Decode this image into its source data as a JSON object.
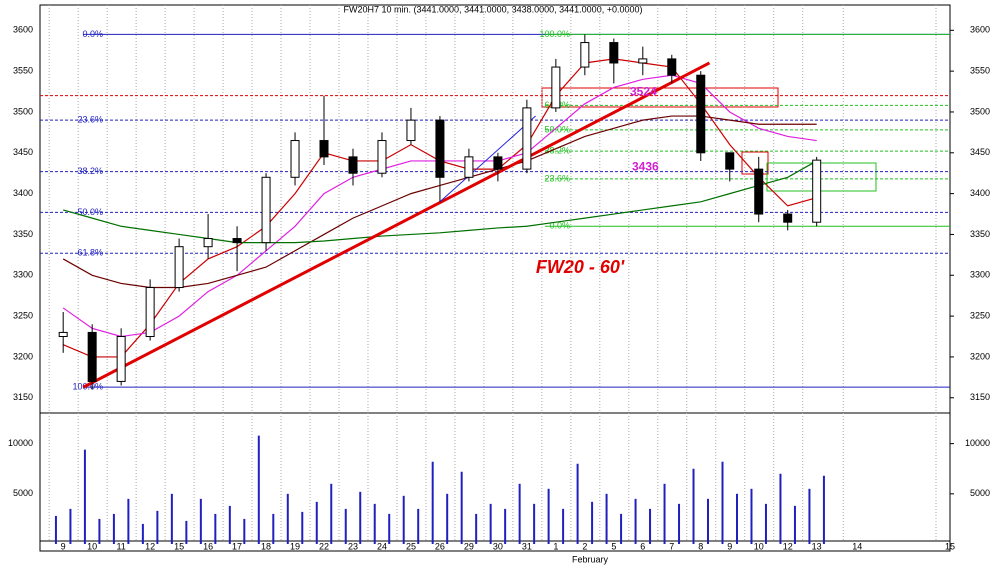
{
  "chart_data": {
    "type": "candlestick",
    "title": "FW20H7 10 min. (3441.0000, 3441.0000, 3438.0000, 3441.0000, +0.0000)",
    "annotation": "FW20 - 60'",
    "price_notes": [
      {
        "label": "3524",
        "value": 3524
      },
      {
        "label": "3436",
        "value": 3436
      }
    ],
    "month_label": "February",
    "xlim": [
      -0.8,
      30.6
    ],
    "xticks": [
      {
        "value": 0,
        "label": "9"
      },
      {
        "value": 1,
        "label": "10"
      },
      {
        "value": 2,
        "label": "11"
      },
      {
        "value": 3,
        "label": "12"
      },
      {
        "value": 4,
        "label": "15"
      },
      {
        "value": 5,
        "label": "16"
      },
      {
        "value": 6,
        "label": "17"
      },
      {
        "value": 7,
        "label": "18"
      },
      {
        "value": 8,
        "label": "19"
      },
      {
        "value": 9,
        "label": "22"
      },
      {
        "value": 10,
        "label": "23"
      },
      {
        "value": 11,
        "label": "24"
      },
      {
        "value": 12,
        "label": "25"
      },
      {
        "value": 13,
        "label": "26"
      },
      {
        "value": 14,
        "label": "29"
      },
      {
        "value": 15,
        "label": "30"
      },
      {
        "value": 16,
        "label": "31"
      },
      {
        "value": 17,
        "label": "1"
      },
      {
        "value": 18,
        "label": "2"
      },
      {
        "value": 19,
        "label": "5"
      },
      {
        "value": 20,
        "label": "6"
      },
      {
        "value": 21,
        "label": "7"
      },
      {
        "value": 22,
        "label": "8"
      },
      {
        "value": 23,
        "label": "9"
      },
      {
        "value": 24,
        "label": "10"
      },
      {
        "value": 25,
        "label": "12"
      },
      {
        "value": 26,
        "label": "13"
      },
      {
        "value": 27.4,
        "label": "14"
      },
      {
        "value": 30.6,
        "label": "15"
      }
    ],
    "ylim": [
      3135,
      3631
    ],
    "yticks": [
      3150,
      3200,
      3250,
      3300,
      3350,
      3400,
      3450,
      3500,
      3550,
      3600
    ],
    "x": [
      0,
      1,
      2,
      3,
      4,
      5,
      6,
      7,
      8,
      9,
      10,
      11,
      12,
      13,
      14,
      15,
      16,
      17,
      18,
      19,
      20,
      21,
      22,
      23,
      24,
      25,
      26
    ],
    "open": [
      3225,
      3230,
      3170,
      3225,
      3285,
      3335,
      3345,
      3340,
      3420,
      3465,
      3445,
      3425,
      3465,
      3490,
      3420,
      3445,
      3430,
      3505,
      3555,
      3585,
      3560,
      3565,
      3545,
      3450,
      3430,
      3375,
      3365
    ],
    "high": [
      3255,
      3240,
      3235,
      3295,
      3345,
      3375,
      3360,
      3425,
      3475,
      3520,
      3455,
      3475,
      3505,
      3495,
      3455,
      3450,
      3515,
      3565,
      3595,
      3590,
      3580,
      3570,
      3550,
      3450,
      3445,
      3380,
      3445
    ],
    "low": [
      3205,
      3160,
      3165,
      3220,
      3280,
      3320,
      3305,
      3330,
      3410,
      3435,
      3410,
      3420,
      3460,
      3390,
      3415,
      3415,
      3425,
      3500,
      3545,
      3535,
      3545,
      3535,
      3440,
      3415,
      3365,
      3355,
      3360
    ],
    "close": [
      3230,
      3170,
      3225,
      3285,
      3335,
      3345,
      3340,
      3420,
      3465,
      3445,
      3425,
      3465,
      3490,
      3420,
      3445,
      3430,
      3505,
      3555,
      3585,
      3560,
      3565,
      3545,
      3450,
      3430,
      3375,
      3365,
      3441
    ],
    "moving_averages": [
      {
        "color": "#cc0000",
        "values": [
          3215,
          3200,
          3200,
          3240,
          3290,
          3320,
          3335,
          3360,
          3400,
          3450,
          3440,
          3440,
          3460,
          3440,
          3430,
          3430,
          3460,
          3520,
          3560,
          3565,
          3560,
          3555,
          3510,
          3460,
          3420,
          3385,
          3395
        ]
      },
      {
        "color": "#e020e0",
        "values": [
          3260,
          3235,
          3225,
          3230,
          3250,
          3280,
          3300,
          3330,
          3360,
          3400,
          3420,
          3430,
          3440,
          3440,
          3440,
          3440,
          3450,
          3480,
          3510,
          3530,
          3540,
          3545,
          3535,
          3500,
          3480,
          3470,
          3465
        ]
      },
      {
        "color": "#6b0000",
        "values": [
          3320,
          3300,
          3290,
          3285,
          3285,
          3290,
          3300,
          3310,
          3330,
          3350,
          3370,
          3385,
          3400,
          3410,
          3420,
          3430,
          3440,
          3455,
          3470,
          3480,
          3490,
          3495,
          3495,
          3490,
          3485,
          3485,
          3485
        ]
      },
      {
        "color": "#007000",
        "values": [
          3380,
          3370,
          3360,
          3355,
          3350,
          3345,
          3340,
          3340,
          3340,
          3342,
          3345,
          3348,
          3350,
          3352,
          3355,
          3358,
          3360,
          3365,
          3370,
          3375,
          3380,
          3385,
          3390,
          3400,
          3410,
          3420,
          3440
        ]
      }
    ],
    "fib_blue": {
      "color": "#2020c0",
      "levels": [
        {
          "label": "0.0%",
          "value": 3595
        },
        {
          "label": "23.6%",
          "value": 3490
        },
        {
          "label": "38.2%",
          "value": 3427
        },
        {
          "label": "50.0%",
          "value": 3377
        },
        {
          "label": "61.8%",
          "value": 3327
        },
        {
          "label": "100.0%",
          "value": 3163
        }
      ]
    },
    "fib_green": {
      "color": "#20c020",
      "levels": [
        {
          "label": "100.0%",
          "value": 3595
        },
        {
          "label": "61.8%",
          "value": 3508
        },
        {
          "label": "50.0%",
          "value": 3478
        },
        {
          "label": "38.2%",
          "value": 3452
        },
        {
          "label": "23.6%",
          "value": 3418
        },
        {
          "label": "0.0%",
          "value": 3360
        }
      ]
    },
    "resistance": {
      "value": 3520,
      "color": "#dd0000"
    },
    "trendlines": [
      {
        "color": "#e00000",
        "x": [
          0.7,
          22.3
        ],
        "y": [
          3163,
          3560
        ]
      },
      {
        "color": "#2020e0",
        "x": [
          13,
          16.3
        ],
        "y": [
          3390,
          3495
        ]
      }
    ],
    "volume": {
      "color": "#2020c0",
      "ylim": [
        0,
        12157
      ],
      "yticks": [
        5000,
        10000
      ],
      "x": [
        -0.25,
        0.25,
        0.75,
        1.25,
        1.75,
        2.25,
        2.75,
        3.25,
        3.75,
        4.25,
        4.75,
        5.25,
        5.75,
        6.25,
        6.75,
        7.25,
        7.75,
        8.25,
        8.75,
        9.25,
        9.75,
        10.25,
        10.75,
        11.25,
        11.75,
        12.25,
        12.75,
        13.25,
        13.75,
        14.25,
        14.75,
        15.25,
        15.75,
        16.25,
        16.75,
        17.25,
        17.75,
        18.25,
        18.75,
        19.25,
        19.75,
        20.25,
        20.75,
        21.25,
        21.75,
        22.25,
        22.75,
        23.25,
        23.75,
        24.25,
        24.75,
        25.25,
        25.75,
        26.25
      ],
      "values": [
        2800,
        3500,
        9400,
        2500,
        3000,
        4500,
        2000,
        3300,
        5000,
        2300,
        4500,
        3000,
        3800,
        2500,
        10800,
        3000,
        5000,
        3200,
        4200,
        6000,
        3500,
        5200,
        4000,
        3000,
        4800,
        3500,
        8200,
        5000,
        7200,
        3000,
        4000,
        3500,
        6000,
        4000,
        5500,
        3500,
        8000,
        4200,
        5000,
        3000,
        4500,
        3500,
        6000,
        4000,
        7500,
        4500,
        8200,
        5000,
        5500,
        4000,
        7000,
        3800,
        5500,
        6800
      ]
    }
  }
}
